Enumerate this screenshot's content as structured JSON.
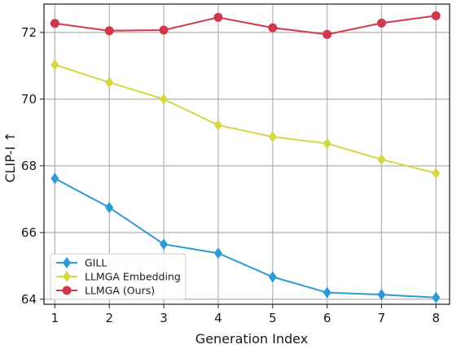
{
  "chart_data": {
    "type": "line",
    "title": "",
    "xlabel": "Generation Index",
    "ylabel": "CLIP-I ↑",
    "x": [
      1,
      2,
      3,
      4,
      5,
      6,
      7,
      8
    ],
    "xlim": [
      0.8,
      8.25
    ],
    "ylim": [
      63.85,
      72.85
    ],
    "xticks": [
      1,
      2,
      3,
      4,
      5,
      6,
      7,
      8
    ],
    "yticks": [
      64,
      66,
      68,
      70,
      72
    ],
    "grid": true,
    "legend_position": "lower-left",
    "series": [
      {
        "name": "GILL",
        "color": "#2a9bd4",
        "marker": "diamond",
        "values": [
          67.62,
          66.75,
          65.65,
          65.38,
          64.67,
          64.2,
          64.14,
          64.05
        ]
      },
      {
        "name": "LLMGA Embedding",
        "color": "#d6d744",
        "marker": "diamond",
        "values": [
          71.03,
          70.5,
          70.0,
          69.22,
          68.87,
          68.67,
          68.19,
          67.78
        ]
      },
      {
        "name": "LLMGA (Ours)",
        "color": "#d0384b",
        "marker": "circle",
        "values": [
          72.27,
          72.05,
          72.07,
          72.45,
          72.14,
          71.94,
          72.28,
          72.5
        ]
      }
    ]
  }
}
